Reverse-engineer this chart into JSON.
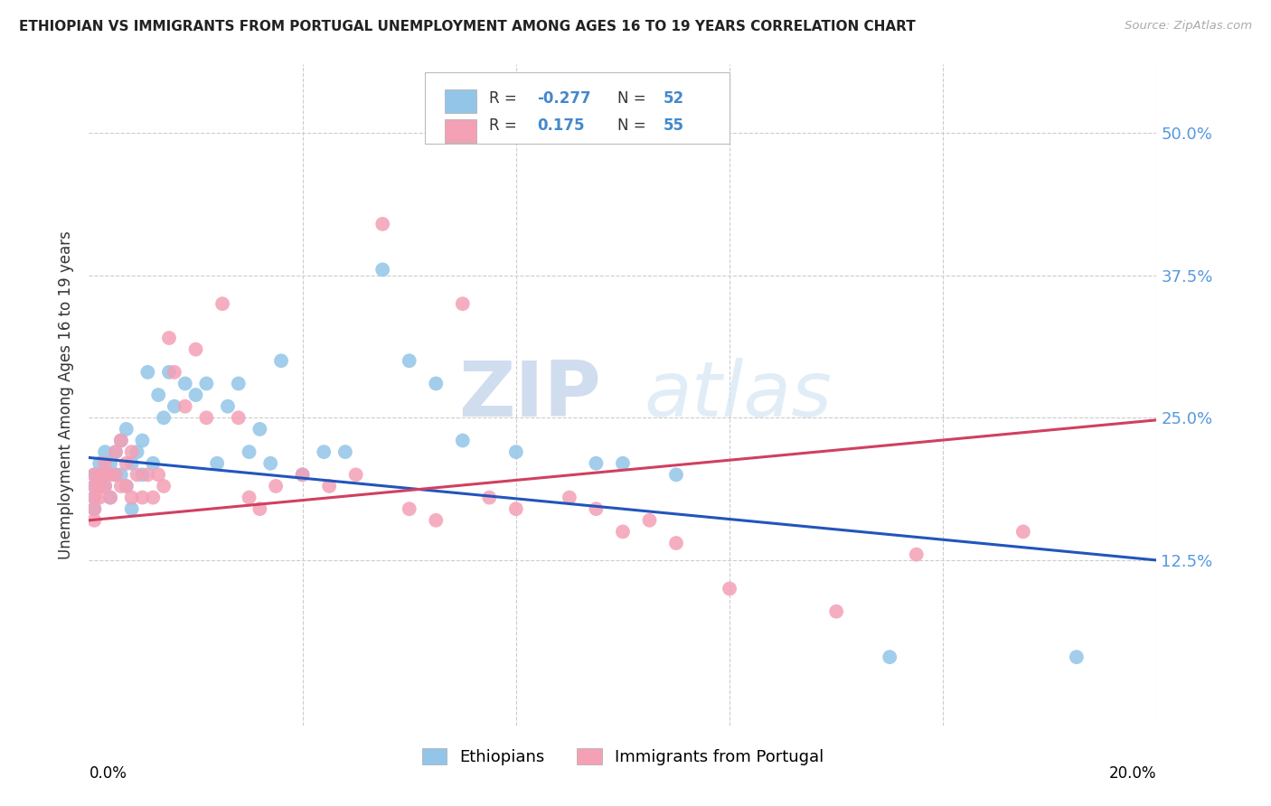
{
  "title": "ETHIOPIAN VS IMMIGRANTS FROM PORTUGAL UNEMPLOYMENT AMONG AGES 16 TO 19 YEARS CORRELATION CHART",
  "source": "Source: ZipAtlas.com",
  "ylabel": "Unemployment Among Ages 16 to 19 years",
  "xlim": [
    0.0,
    0.2
  ],
  "ylim": [
    -0.02,
    0.56
  ],
  "yticks": [
    0.125,
    0.25,
    0.375,
    0.5
  ],
  "ytick_labels": [
    "12.5%",
    "25.0%",
    "37.5%",
    "50.0%"
  ],
  "xticks": [
    0.0,
    0.04,
    0.08,
    0.12,
    0.16,
    0.2
  ],
  "legend_labels": [
    "Ethiopians",
    "Immigrants from Portugal"
  ],
  "R_ethiopian": -0.277,
  "N_ethiopian": 52,
  "R_portugal": 0.175,
  "N_portugal": 55,
  "color_ethiopian": "#92C5E8",
  "color_portugal": "#F4A0B5",
  "line_color_ethiopian": "#2255BB",
  "line_color_portugal": "#D04060",
  "watermark_zip": "ZIP",
  "watermark_atlas": "atlas",
  "eth_line_y0": 0.215,
  "eth_line_y1": 0.125,
  "port_line_y0": 0.16,
  "port_line_y1": 0.248,
  "ethiopian_x": [
    0.001,
    0.001,
    0.001,
    0.001,
    0.002,
    0.002,
    0.002,
    0.003,
    0.003,
    0.003,
    0.004,
    0.004,
    0.005,
    0.005,
    0.006,
    0.006,
    0.007,
    0.007,
    0.008,
    0.008,
    0.009,
    0.01,
    0.01,
    0.011,
    0.012,
    0.013,
    0.014,
    0.015,
    0.016,
    0.018,
    0.02,
    0.022,
    0.024,
    0.026,
    0.028,
    0.03,
    0.032,
    0.034,
    0.036,
    0.04,
    0.044,
    0.048,
    0.055,
    0.06,
    0.065,
    0.07,
    0.08,
    0.095,
    0.1,
    0.11,
    0.15,
    0.185
  ],
  "ethiopian_y": [
    0.2,
    0.19,
    0.18,
    0.17,
    0.21,
    0.2,
    0.19,
    0.22,
    0.2,
    0.19,
    0.21,
    0.18,
    0.22,
    0.2,
    0.23,
    0.2,
    0.24,
    0.19,
    0.21,
    0.17,
    0.22,
    0.23,
    0.2,
    0.29,
    0.21,
    0.27,
    0.25,
    0.29,
    0.26,
    0.28,
    0.27,
    0.28,
    0.21,
    0.26,
    0.28,
    0.22,
    0.24,
    0.21,
    0.3,
    0.2,
    0.22,
    0.22,
    0.38,
    0.3,
    0.28,
    0.23,
    0.22,
    0.21,
    0.21,
    0.2,
    0.04,
    0.04
  ],
  "portugal_x": [
    0.001,
    0.001,
    0.001,
    0.001,
    0.001,
    0.002,
    0.002,
    0.002,
    0.003,
    0.003,
    0.003,
    0.004,
    0.004,
    0.005,
    0.005,
    0.006,
    0.006,
    0.007,
    0.007,
    0.008,
    0.008,
    0.009,
    0.01,
    0.011,
    0.012,
    0.013,
    0.014,
    0.015,
    0.016,
    0.018,
    0.02,
    0.022,
    0.025,
    0.028,
    0.03,
    0.032,
    0.035,
    0.04,
    0.045,
    0.05,
    0.055,
    0.06,
    0.065,
    0.07,
    0.075,
    0.08,
    0.09,
    0.095,
    0.1,
    0.105,
    0.11,
    0.12,
    0.14,
    0.155,
    0.175
  ],
  "portugal_y": [
    0.2,
    0.19,
    0.18,
    0.17,
    0.16,
    0.2,
    0.19,
    0.18,
    0.21,
    0.2,
    0.19,
    0.2,
    0.18,
    0.22,
    0.2,
    0.23,
    0.19,
    0.21,
    0.19,
    0.22,
    0.18,
    0.2,
    0.18,
    0.2,
    0.18,
    0.2,
    0.19,
    0.32,
    0.29,
    0.26,
    0.31,
    0.25,
    0.35,
    0.25,
    0.18,
    0.17,
    0.19,
    0.2,
    0.19,
    0.2,
    0.42,
    0.17,
    0.16,
    0.35,
    0.18,
    0.17,
    0.18,
    0.17,
    0.15,
    0.16,
    0.14,
    0.1,
    0.08,
    0.13,
    0.15
  ]
}
